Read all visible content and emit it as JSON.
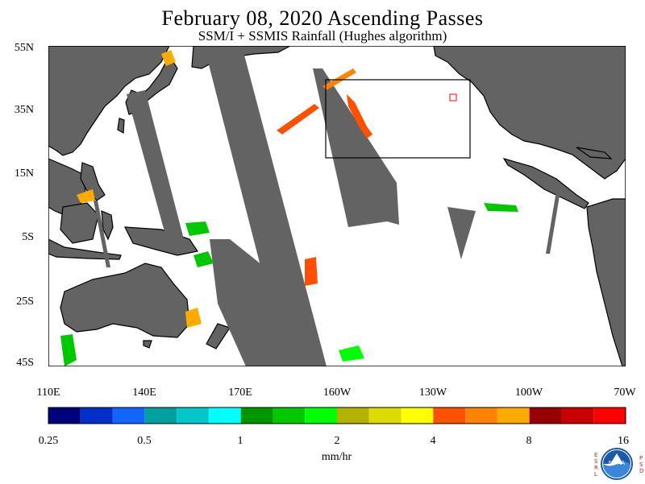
{
  "title": "February 08, 2020  Ascending Passes",
  "subtitle": "SSM/I + SSMIS Rainfall (Hughes algorithm)",
  "lat_labels": [
    "55N",
    "35N",
    "15N",
    "5S",
    "25S",
    "45S"
  ],
  "lon_labels": [
    "110E",
    "140E",
    "170E",
    "160W",
    "130W",
    "100W",
    "70W"
  ],
  "colorbar": {
    "tick_labels": [
      "0.25",
      "0.5",
      "1",
      "2",
      "4",
      "8",
      "16"
    ],
    "units": "mm/hr",
    "colors": [
      "#00007a",
      "#0030c8",
      "#1464ff",
      "#00a0a0",
      "#00c8c8",
      "#00ffff",
      "#009600",
      "#00c800",
      "#00ff00",
      "#b4b400",
      "#dcdc00",
      "#ffff00",
      "#ff5000",
      "#ff8200",
      "#ffaa00",
      "#960000",
      "#c80000",
      "#ff0000"
    ]
  },
  "logo": {
    "letters_left": "ESRL",
    "letters_right": "PSD",
    "center": "NOAA"
  },
  "colors": {
    "land": "#636363",
    "swath_gap": "#636363",
    "ocean": "#ffffff",
    "box": "#000000",
    "marker": "#ff0000"
  }
}
